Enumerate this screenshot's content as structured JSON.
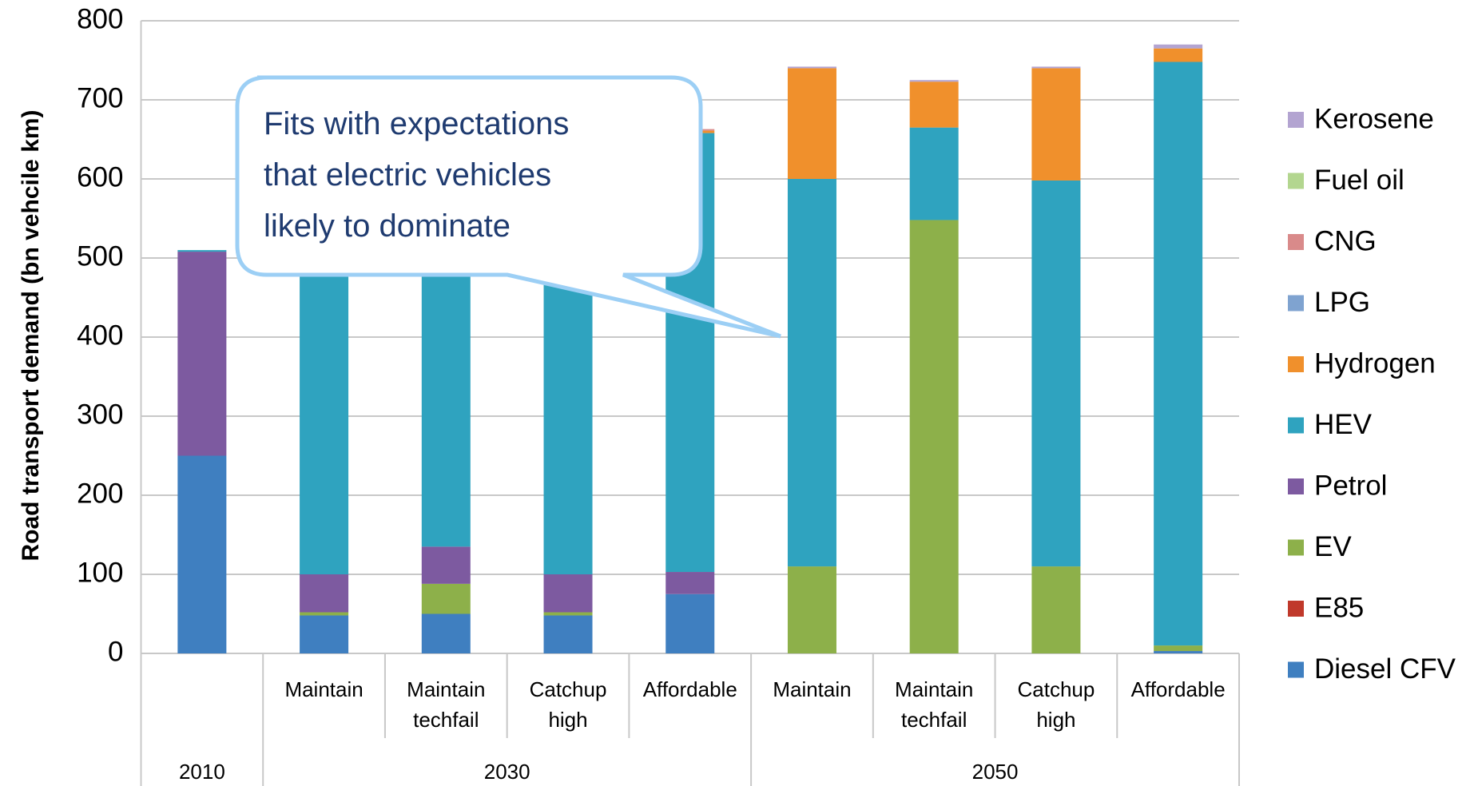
{
  "chart_data": {
    "type": "stacked_bar",
    "y_label": "Road transport demand (bn vehcile km)",
    "groups": [
      {
        "name": "2010",
        "categories": [
          null
        ]
      },
      {
        "name": "2030",
        "categories": [
          "Maintain",
          "Maintain techfail",
          "Catchup high",
          "Affordable"
        ]
      },
      {
        "name": "2050",
        "categories": [
          "Maintain",
          "Maintain techfail",
          "Catchup high",
          "Affordable"
        ]
      }
    ],
    "ylim": [
      0,
      800
    ],
    "yticks": [
      0,
      100,
      200,
      300,
      400,
      500,
      600,
      700,
      800
    ],
    "grid": true,
    "legend": "right",
    "series": [
      {
        "name": "Diesel CFV",
        "color": "#3f7fc0",
        "values": [
          250,
          48,
          50,
          48,
          75,
          0,
          0,
          0,
          3
        ]
      },
      {
        "name": "E85",
        "color": "#c0392b",
        "values": [
          0,
          0,
          0,
          0,
          0,
          0,
          0,
          0,
          0
        ]
      },
      {
        "name": "EV",
        "color": "#8db04a",
        "values": [
          0,
          4,
          38,
          4,
          0,
          110,
          548,
          110,
          7
        ]
      },
      {
        "name": "Petrol",
        "color": "#7d5aa0",
        "values": [
          258,
          48,
          47,
          48,
          28,
          0,
          0,
          0,
          0
        ]
      },
      {
        "name": "HEV",
        "color": "#2fa3bf",
        "values": [
          2,
          555,
          520,
          555,
          555,
          490,
          117,
          488,
          738
        ]
      },
      {
        "name": "Hydrogen",
        "color": "#f0902c",
        "values": [
          0,
          0,
          0,
          0,
          3,
          140,
          58,
          142,
          17
        ]
      },
      {
        "name": "LPG",
        "color": "#7fa3d0",
        "values": [
          0,
          0,
          0,
          0,
          0,
          0,
          0,
          0,
          0
        ]
      },
      {
        "name": "CNG",
        "color": "#d98a8a",
        "values": [
          0,
          0,
          0,
          0,
          2,
          0,
          0,
          0,
          0
        ]
      },
      {
        "name": "Fuel oil",
        "color": "#b3d68f",
        "values": [
          0,
          0,
          0,
          0,
          0,
          0,
          0,
          0,
          0
        ]
      },
      {
        "name": "Kerosene",
        "color": "#b3a4d1",
        "values": [
          0,
          0,
          0,
          0,
          0,
          2,
          2,
          2,
          5
        ]
      }
    ],
    "annotation": [
      "Fits with expectations",
      "that electric vehicles",
      "likely to dominate"
    ]
  }
}
